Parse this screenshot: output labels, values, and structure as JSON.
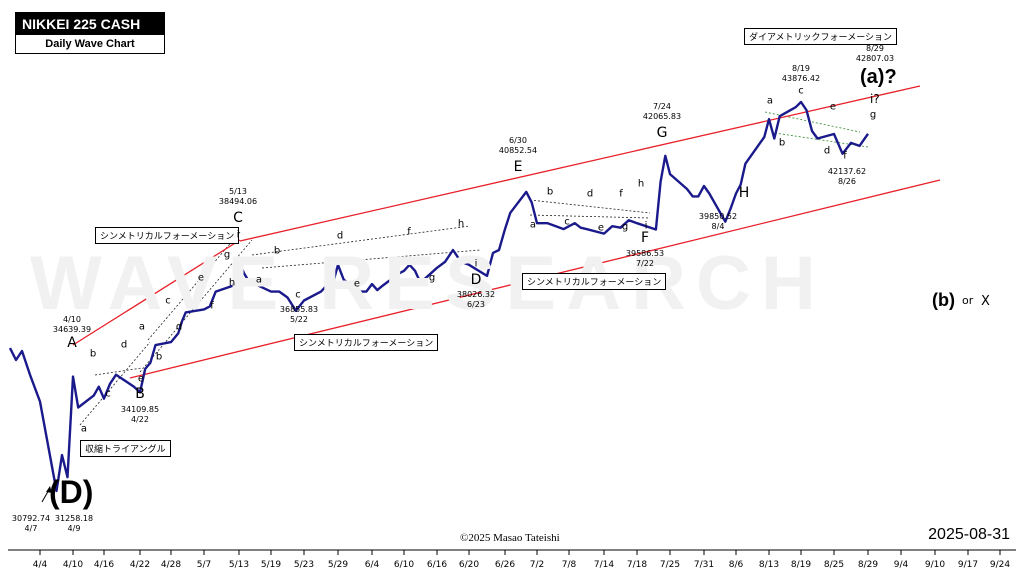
{
  "header": {
    "title": "NIKKEI 225 CASH",
    "subtitle": "Daily Wave Chart"
  },
  "watermark": "WAVE RESEARCH",
  "footer": {
    "copyright": "©2025 Masao Tateishi",
    "date": "2025-08-31"
  },
  "labels": {
    "d_big": "(D)",
    "a_big": "(a)?",
    "b_big": "(b)",
    "or": "or",
    "x": "X",
    "i_roman": "i",
    "q": "?"
  },
  "formations": {
    "contracting_triangle": "収縮トライアングル",
    "sym1": "シンメトリカルフォーメーション",
    "sym2": "シンメトリカルフォーメーション",
    "sym3": "シンメトリカルフォーメーション",
    "diametric": "ダイアメトリックフォーメーション"
  },
  "annotations": {
    "low_0407": "30792.74\n4/7",
    "low_0409": "31258.18\n4/9",
    "A": "4/10\n34639.39",
    "B": "34109.85\n4/22",
    "C": "5/13\n38494.06",
    "c_0522": "36855.83\n5/22",
    "D": "38026.32\n6/23",
    "E": "6/30\n40852.54",
    "F": "39586.53\n7/22",
    "G": "7/24\n42065.83",
    "H": "39850.52\n8/4",
    "c_0819": "8/19\n43876.42",
    "f_0826": "42137.62\n8/26",
    "end_0829": "8/29\n42807.03"
  },
  "colors": {
    "price": "#1a1a8c",
    "channel": "#e8202a",
    "guide": "#222222",
    "green_guide": "#2a8a2a"
  },
  "chart_data": {
    "type": "line",
    "title": "NIKKEI 225 CASH",
    "subtitle": "Daily Wave Chart",
    "x_ticks": [
      "4/4",
      "4/10",
      "4/16",
      "4/22",
      "4/28",
      "5/7",
      "5/13",
      "5/19",
      "5/23",
      "5/29",
      "6/4",
      "6/10",
      "6/16",
      "6/20",
      "6/26",
      "7/2",
      "7/8",
      "7/14",
      "7/18",
      "7/25",
      "7/31",
      "8/6",
      "8/13",
      "8/19",
      "8/25",
      "8/29",
      "9/4",
      "9/10",
      "9/17",
      "9/24"
    ],
    "series": [
      {
        "points": [
          [
            "3/31",
            35600
          ],
          [
            "4/1",
            35200
          ],
          [
            "4/2",
            35500
          ],
          [
            "4/3",
            34700
          ],
          [
            "4/4",
            33800
          ],
          [
            "4/7",
            30792.74
          ],
          [
            "4/8",
            32000
          ],
          [
            "4/9",
            31258.18
          ],
          [
            "4/10",
            34639.39
          ],
          [
            "4/11",
            33600
          ],
          [
            "4/14",
            34000
          ],
          [
            "4/15",
            34300
          ],
          [
            "4/16",
            33900
          ],
          [
            "4/17",
            34400
          ],
          [
            "4/18",
            34700
          ],
          [
            "4/21",
            34300
          ],
          [
            "4/22",
            34109.85
          ],
          [
            "4/23",
            34900
          ],
          [
            "4/24",
            35100
          ],
          [
            "4/25",
            35700
          ],
          [
            "4/28",
            35800
          ],
          [
            "4/30",
            36100
          ],
          [
            "5/1",
            36500
          ],
          [
            "5/2",
            36800
          ],
          [
            "5/7",
            36900
          ],
          [
            "5/8",
            37000
          ],
          [
            "5/9",
            37500
          ],
          [
            "5/12",
            37700
          ],
          [
            "5/13",
            38494.06
          ],
          [
            "5/14",
            38100
          ],
          [
            "5/15",
            37800
          ],
          [
            "5/16",
            37750
          ],
          [
            "5/19",
            37500
          ],
          [
            "5/20",
            37500
          ],
          [
            "5/21",
            37300
          ],
          [
            "5/22",
            36855.83
          ],
          [
            "5/23",
            37200
          ],
          [
            "5/26",
            37500
          ],
          [
            "5/27",
            37700
          ],
          [
            "5/28",
            37700
          ],
          [
            "5/29",
            38400
          ],
          [
            "5/30",
            37900
          ],
          [
            "6/2",
            37500
          ],
          [
            "6/3",
            37500
          ],
          [
            "6/4",
            37750
          ],
          [
            "6/5",
            37550
          ],
          [
            "6/6",
            37700
          ],
          [
            "6/9",
            38100
          ],
          [
            "6/10",
            38200
          ],
          [
            "6/11",
            38400
          ],
          [
            "6/12",
            38200
          ],
          [
            "6/13",
            37800
          ],
          [
            "6/16",
            38300
          ],
          [
            "6/17",
            38500
          ],
          [
            "6/18",
            38900
          ],
          [
            "6/19",
            38500
          ],
          [
            "6/20",
            38400
          ],
          [
            "6/23",
            38026.32
          ],
          [
            "6/24",
            38800
          ],
          [
            "6/25",
            38900
          ],
          [
            "6/26",
            39600
          ],
          [
            "6/27",
            40150
          ],
          [
            "6/30",
            40852.54
          ],
          [
            "7/1",
            40500
          ],
          [
            "7/2",
            39800
          ],
          [
            "7/3",
            39800
          ],
          [
            "7/4",
            39800
          ],
          [
            "7/7",
            39600
          ],
          [
            "7/8",
            39700
          ],
          [
            "7/9",
            39800
          ],
          [
            "7/10",
            39650
          ],
          [
            "7/11",
            39600
          ],
          [
            "7/14",
            39450
          ],
          [
            "7/15",
            39700
          ],
          [
            "7/16",
            39650
          ],
          [
            "7/17",
            39900
          ],
          [
            "7/18",
            39800
          ],
          [
            "7/22",
            39586.53
          ],
          [
            "7/23",
            41200
          ],
          [
            "7/24",
            42065.83
          ],
          [
            "7/25",
            41450
          ],
          [
            "7/28",
            40950
          ],
          [
            "7/29",
            40700
          ],
          [
            "7/30",
            40700
          ],
          [
            "7/31",
            41050
          ],
          [
            "8/1",
            40800
          ],
          [
            "8/4",
            39850.52
          ],
          [
            "8/5",
            40300
          ],
          [
            "8/6",
            40800
          ],
          [
            "8/7",
            41100
          ],
          [
            "8/8",
            41800
          ],
          [
            "8/12",
            42700
          ],
          [
            "8/13",
            43300
          ],
          [
            "8/14",
            42650
          ],
          [
            "8/15",
            43400
          ],
          [
            "8/18",
            43700
          ],
          [
            "8/19",
            43876.42
          ],
          [
            "8/20",
            43600
          ],
          [
            "8/21",
            42900
          ],
          [
            "8/22",
            42650
          ],
          [
            "8/25",
            42800
          ],
          [
            "8/26",
            42137.62
          ],
          [
            "8/27",
            42500
          ],
          [
            "8/28",
            42400
          ],
          [
            "8/29",
            42807.03
          ]
        ]
      }
    ],
    "channel_lines": [
      {
        "name": "upper",
        "from": [
          "4/10",
          34639.39
        ],
        "to": [
          "8/29",
          44200
        ]
      },
      {
        "name": "lower",
        "from": [
          "4/22",
          34109.85
        ],
        "to": [
          "9/4",
          42000
        ]
      }
    ],
    "ylim": [
      30500,
      45000
    ],
    "grid": false,
    "legend": "none"
  }
}
